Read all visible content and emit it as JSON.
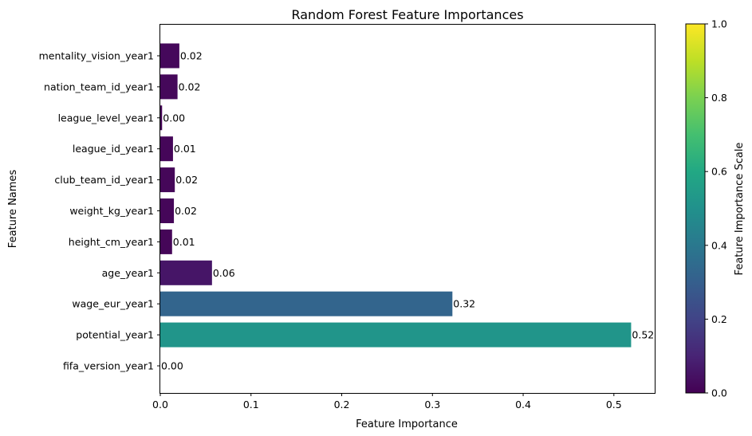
{
  "chart_data": {
    "type": "bar",
    "orientation": "horizontal",
    "title": "Random Forest Feature Importances",
    "xlabel": "Feature Importance",
    "ylabel": "Feature Names",
    "xlim": [
      0,
      0.545
    ],
    "xticks": [
      "0.0",
      "0.1",
      "0.2",
      "0.3",
      "0.4",
      "0.5"
    ],
    "categories": [
      "fifa_version_year1",
      "potential_year1",
      "wage_eur_year1",
      "age_year1",
      "height_cm_year1",
      "weight_kg_year1",
      "club_team_id_year1",
      "league_id_year1",
      "league_level_year1",
      "nation_team_id_year1",
      "mentality_vision_year1"
    ],
    "values": [
      0.0,
      0.519,
      0.322,
      0.057,
      0.013,
      0.015,
      0.016,
      0.014,
      0.002,
      0.019,
      0.021
    ],
    "data_labels": [
      "0.00",
      "0.52",
      "0.32",
      "0.06",
      "0.01",
      "0.02",
      "0.02",
      "0.01",
      "0.00",
      "0.02",
      "0.02"
    ],
    "colormap": "viridis",
    "colorbar": {
      "label": "Feature Importance Scale",
      "range": [
        0,
        1
      ],
      "ticks": [
        "0.0",
        "0.2",
        "0.4",
        "0.6",
        "0.8",
        "1.0"
      ]
    },
    "grid": false,
    "legend": "none"
  }
}
